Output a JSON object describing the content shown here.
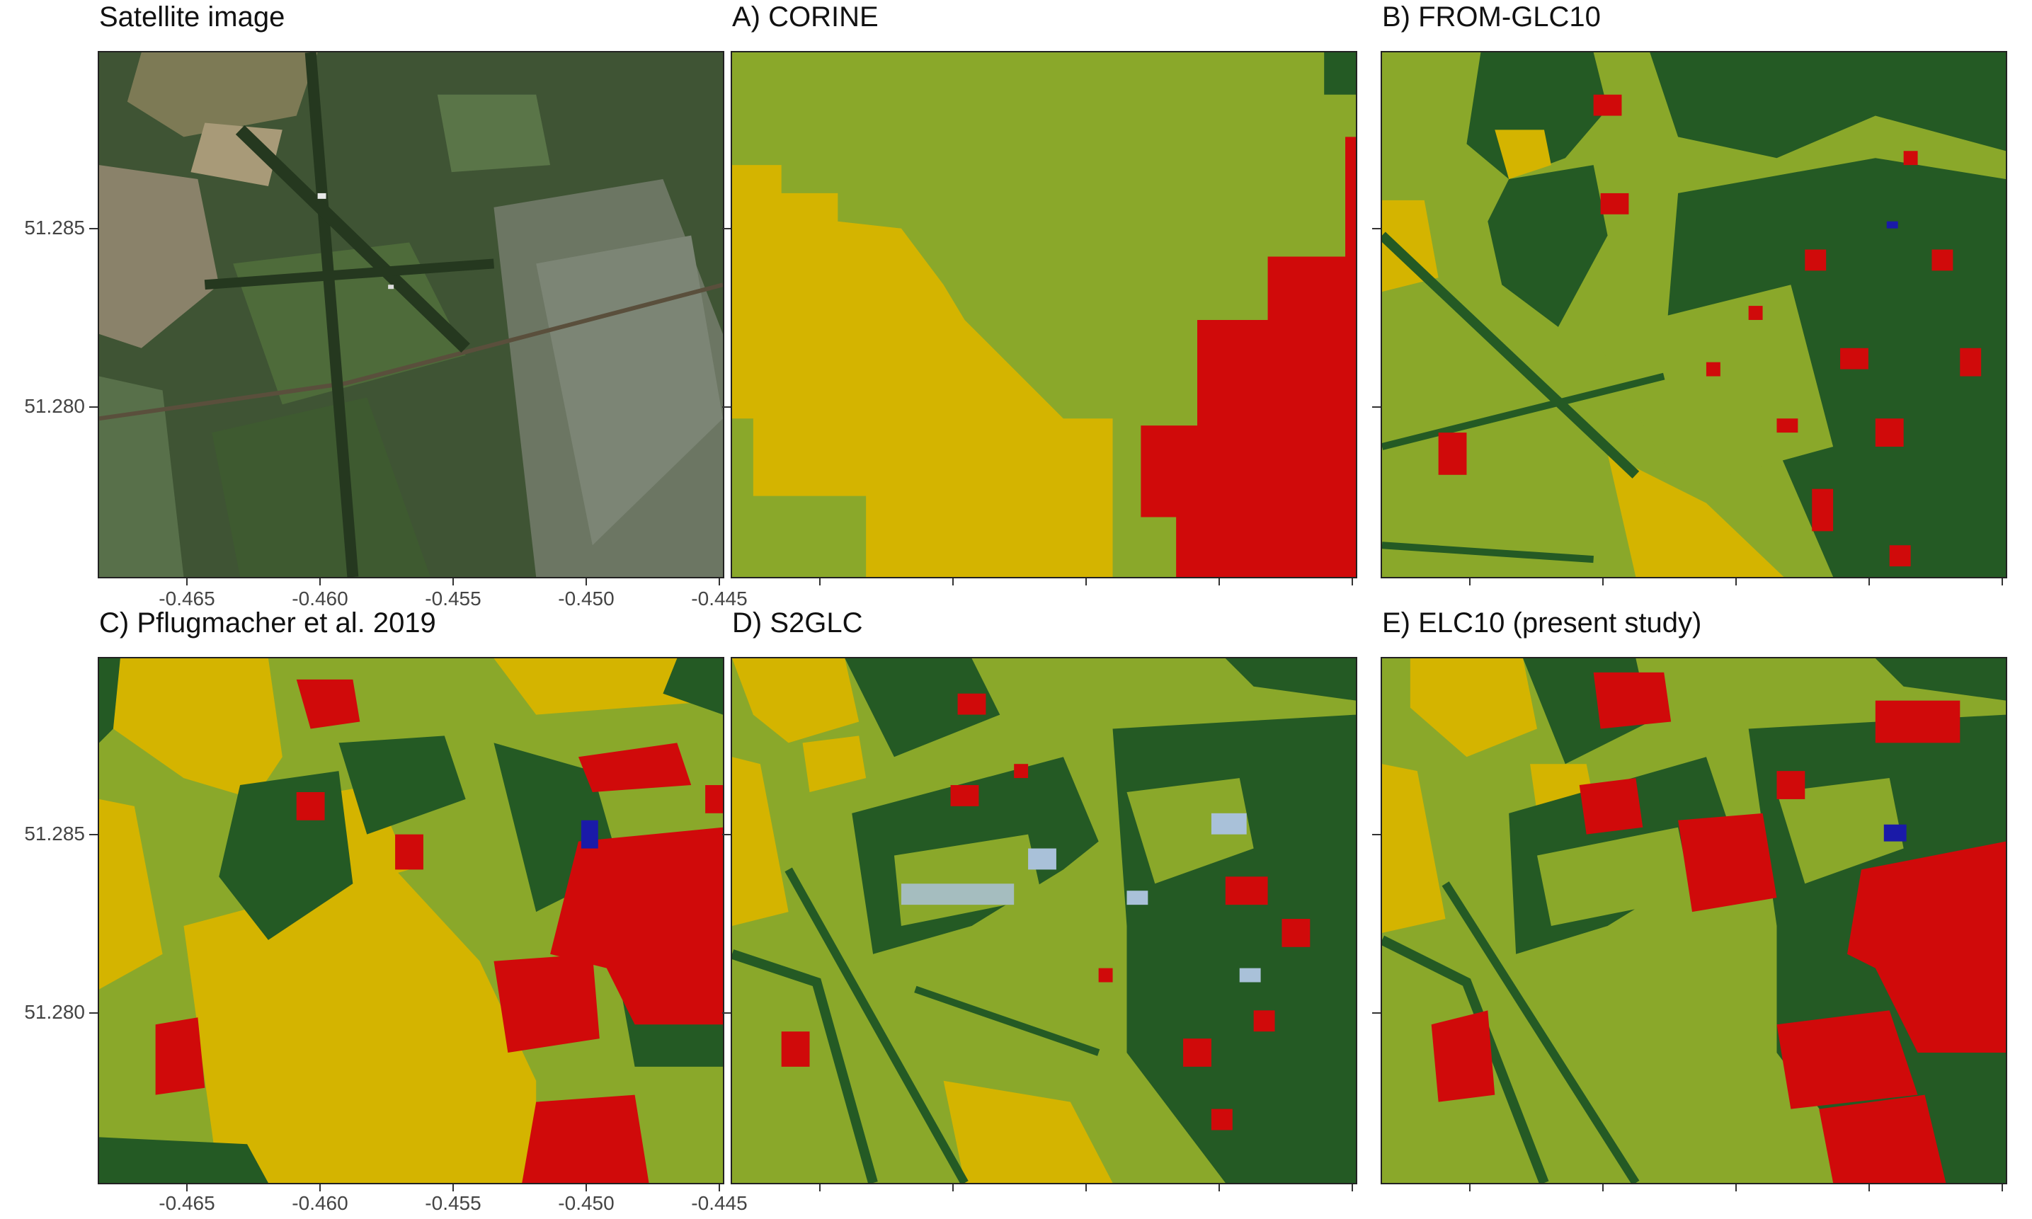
{
  "colors": {
    "cropland": "#d4b400",
    "grassland": "#8aa82a",
    "grassland_light": "#97b035",
    "forest": "#245a24",
    "urban": "#d00a0a",
    "water": "#1a1aa8",
    "bare": "#a9c1d9",
    "satellite_base": "#3d5233"
  },
  "panels": [
    {
      "id": "satellite",
      "title": "Satellite image"
    },
    {
      "id": "corine",
      "title": "A) CORINE"
    },
    {
      "id": "fromglc10",
      "title": "B)  FROM-GLC10"
    },
    {
      "id": "pflugmacher",
      "title": "C)  Pflugmacher et al. 2019"
    },
    {
      "id": "s2glc",
      "title": "D) S2GLC"
    },
    {
      "id": "elc10",
      "title": "E) ELC10 (present study)"
    }
  ],
  "axes": {
    "y_ticks": [
      "51.285",
      "51.280"
    ],
    "x_ticks": [
      "-0.465",
      "-0.460",
      "-0.455",
      "-0.450",
      "-0.445"
    ]
  }
}
